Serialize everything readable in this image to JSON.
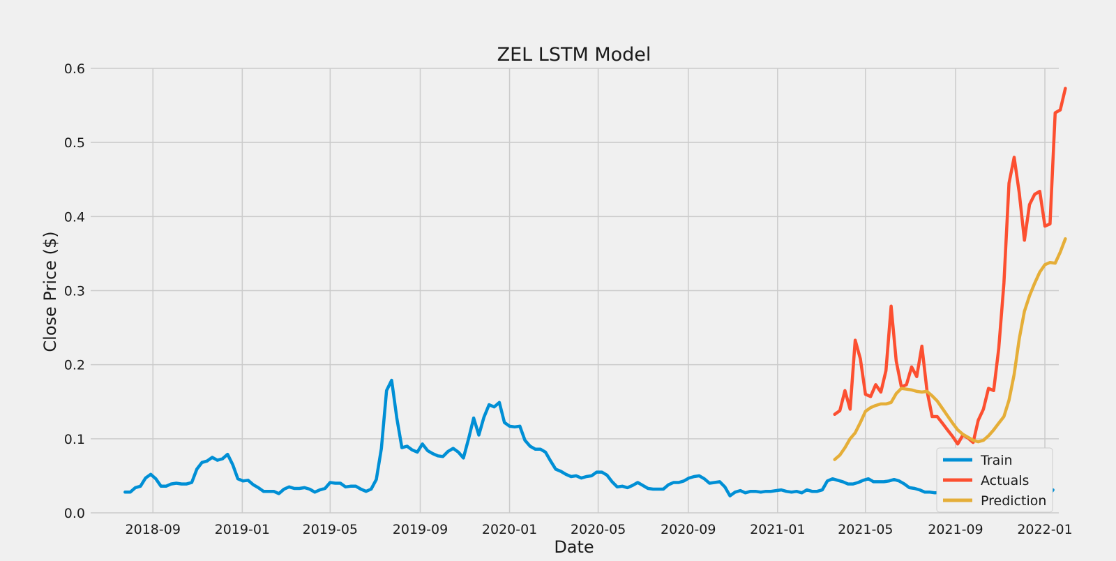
{
  "chart_data": {
    "type": "line",
    "title": "ZEL LSTM Model",
    "xlabel": "Date",
    "ylabel": "Close Price ($)",
    "xlim": [
      "2018-06-08",
      "2022-01-20"
    ],
    "ylim": [
      0,
      0.6
    ],
    "x_ticks": [
      "2018-09",
      "2019-01",
      "2019-05",
      "2019-09",
      "2020-01",
      "2020-05",
      "2020-09",
      "2021-01",
      "2021-05",
      "2021-09",
      "2022-01"
    ],
    "y_ticks": [
      "0.0",
      "0.1",
      "0.2",
      "0.3",
      "0.4",
      "0.5",
      "0.6"
    ],
    "grid": true,
    "legend_position": "bottom-right",
    "series": [
      {
        "name": "Train",
        "color": "#008fd5",
        "points": [
          [
            "2018-07-25",
            0.028
          ],
          [
            "2018-08-01",
            0.028
          ],
          [
            "2018-08-08",
            0.034
          ],
          [
            "2018-08-15",
            0.036
          ],
          [
            "2018-08-22",
            0.047
          ],
          [
            "2018-08-29",
            0.052
          ],
          [
            "2018-09-05",
            0.046
          ],
          [
            "2018-09-12",
            0.036
          ],
          [
            "2018-09-19",
            0.036
          ],
          [
            "2018-09-26",
            0.039
          ],
          [
            "2018-10-03",
            0.04
          ],
          [
            "2018-10-10",
            0.039
          ],
          [
            "2018-10-17",
            0.039
          ],
          [
            "2018-10-24",
            0.041
          ],
          [
            "2018-10-31",
            0.059
          ],
          [
            "2018-11-07",
            0.068
          ],
          [
            "2018-11-14",
            0.07
          ],
          [
            "2018-11-21",
            0.075
          ],
          [
            "2018-11-28",
            0.071
          ],
          [
            "2018-12-05",
            0.073
          ],
          [
            "2018-12-12",
            0.079
          ],
          [
            "2018-12-19",
            0.065
          ],
          [
            "2018-12-26",
            0.046
          ],
          [
            "2019-01-02",
            0.043
          ],
          [
            "2019-01-09",
            0.044
          ],
          [
            "2019-01-16",
            0.038
          ],
          [
            "2019-01-23",
            0.034
          ],
          [
            "2019-01-30",
            0.029
          ],
          [
            "2019-02-06",
            0.029
          ],
          [
            "2019-02-13",
            0.029
          ],
          [
            "2019-02-20",
            0.026
          ],
          [
            "2019-02-27",
            0.032
          ],
          [
            "2019-03-06",
            0.035
          ],
          [
            "2019-03-13",
            0.033
          ],
          [
            "2019-03-20",
            0.033
          ],
          [
            "2019-03-27",
            0.034
          ],
          [
            "2019-04-03",
            0.032
          ],
          [
            "2019-04-10",
            0.028
          ],
          [
            "2019-04-17",
            0.031
          ],
          [
            "2019-04-24",
            0.033
          ],
          [
            "2019-05-01",
            0.041
          ],
          [
            "2019-05-08",
            0.04
          ],
          [
            "2019-05-15",
            0.04
          ],
          [
            "2019-05-22",
            0.035
          ],
          [
            "2019-05-29",
            0.036
          ],
          [
            "2019-06-05",
            0.036
          ],
          [
            "2019-06-12",
            0.032
          ],
          [
            "2019-06-19",
            0.029
          ],
          [
            "2019-06-26",
            0.032
          ],
          [
            "2019-07-03",
            0.045
          ],
          [
            "2019-07-10",
            0.087
          ],
          [
            "2019-07-17",
            0.165
          ],
          [
            "2019-07-24",
            0.179
          ],
          [
            "2019-07-31",
            0.128
          ],
          [
            "2019-08-07",
            0.088
          ],
          [
            "2019-08-14",
            0.09
          ],
          [
            "2019-08-21",
            0.085
          ],
          [
            "2019-08-28",
            0.082
          ],
          [
            "2019-09-04",
            0.093
          ],
          [
            "2019-09-11",
            0.084
          ],
          [
            "2019-09-18",
            0.08
          ],
          [
            "2019-09-25",
            0.077
          ],
          [
            "2019-10-02",
            0.076
          ],
          [
            "2019-10-09",
            0.083
          ],
          [
            "2019-10-16",
            0.087
          ],
          [
            "2019-10-23",
            0.082
          ],
          [
            "2019-10-30",
            0.074
          ],
          [
            "2019-11-06",
            0.1
          ],
          [
            "2019-11-13",
            0.128
          ],
          [
            "2019-11-20",
            0.105
          ],
          [
            "2019-11-27",
            0.129
          ],
          [
            "2019-12-04",
            0.146
          ],
          [
            "2019-12-11",
            0.143
          ],
          [
            "2019-12-18",
            0.149
          ],
          [
            "2019-12-25",
            0.122
          ],
          [
            "2020-01-01",
            0.117
          ],
          [
            "2020-01-08",
            0.116
          ],
          [
            "2020-01-15",
            0.117
          ],
          [
            "2020-01-22",
            0.098
          ],
          [
            "2020-01-29",
            0.09
          ],
          [
            "2020-02-05",
            0.086
          ],
          [
            "2020-02-12",
            0.086
          ],
          [
            "2020-02-19",
            0.082
          ],
          [
            "2020-02-26",
            0.07
          ],
          [
            "2020-03-04",
            0.059
          ],
          [
            "2020-03-11",
            0.056
          ],
          [
            "2020-03-18",
            0.052
          ],
          [
            "2020-03-25",
            0.049
          ],
          [
            "2020-04-01",
            0.05
          ],
          [
            "2020-04-08",
            0.047
          ],
          [
            "2020-04-15",
            0.049
          ],
          [
            "2020-04-22",
            0.05
          ],
          [
            "2020-04-29",
            0.055
          ],
          [
            "2020-05-06",
            0.055
          ],
          [
            "2020-05-13",
            0.051
          ],
          [
            "2020-05-20",
            0.042
          ],
          [
            "2020-05-27",
            0.035
          ],
          [
            "2020-06-03",
            0.036
          ],
          [
            "2020-06-10",
            0.034
          ],
          [
            "2020-06-17",
            0.037
          ],
          [
            "2020-06-24",
            0.041
          ],
          [
            "2020-07-01",
            0.037
          ],
          [
            "2020-07-08",
            0.033
          ],
          [
            "2020-07-15",
            0.032
          ],
          [
            "2020-07-22",
            0.032
          ],
          [
            "2020-07-29",
            0.032
          ],
          [
            "2020-08-05",
            0.038
          ],
          [
            "2020-08-12",
            0.041
          ],
          [
            "2020-08-19",
            0.041
          ],
          [
            "2020-08-26",
            0.043
          ],
          [
            "2020-09-02",
            0.047
          ],
          [
            "2020-09-09",
            0.049
          ],
          [
            "2020-09-16",
            0.05
          ],
          [
            "2020-09-23",
            0.046
          ],
          [
            "2020-09-30",
            0.04
          ],
          [
            "2020-10-07",
            0.041
          ],
          [
            "2020-10-14",
            0.042
          ],
          [
            "2020-10-21",
            0.035
          ],
          [
            "2020-10-28",
            0.023
          ],
          [
            "2020-11-04",
            0.028
          ],
          [
            "2020-11-11",
            0.03
          ],
          [
            "2020-11-18",
            0.027
          ],
          [
            "2020-11-25",
            0.029
          ],
          [
            "2020-12-02",
            0.029
          ],
          [
            "2020-12-09",
            0.028
          ],
          [
            "2020-12-16",
            0.029
          ],
          [
            "2020-12-23",
            0.029
          ],
          [
            "2020-12-30",
            0.03
          ],
          [
            "2021-01-06",
            0.031
          ],
          [
            "2021-01-13",
            0.029
          ],
          [
            "2021-01-20",
            0.028
          ],
          [
            "2021-01-27",
            0.029
          ],
          [
            "2021-02-03",
            0.027
          ],
          [
            "2021-02-10",
            0.031
          ],
          [
            "2021-02-17",
            0.029
          ],
          [
            "2021-02-24",
            0.029
          ],
          [
            "2021-03-03",
            0.031
          ],
          [
            "2021-03-10",
            0.043
          ],
          [
            "2021-03-17",
            0.046
          ],
          [
            "2021-03-24",
            0.044
          ],
          [
            "2021-03-31",
            0.042
          ],
          [
            "2021-04-07",
            0.039
          ],
          [
            "2021-04-14",
            0.039
          ],
          [
            "2021-04-21",
            0.041
          ],
          [
            "2021-04-28",
            0.044
          ],
          [
            "2021-05-05",
            0.046
          ],
          [
            "2021-05-12",
            0.042
          ],
          [
            "2021-05-19",
            0.042
          ],
          [
            "2021-05-26",
            0.042
          ],
          [
            "2021-06-02",
            0.043
          ],
          [
            "2021-06-09",
            0.045
          ],
          [
            "2021-06-16",
            0.043
          ],
          [
            "2021-06-23",
            0.039
          ],
          [
            "2021-06-30",
            0.034
          ],
          [
            "2021-07-07",
            0.033
          ],
          [
            "2021-07-14",
            0.031
          ],
          [
            "2021-07-21",
            0.028
          ],
          [
            "2021-07-28",
            0.028
          ],
          [
            "2021-08-04",
            0.027
          ],
          [
            "2021-08-11",
            0.028
          ],
          [
            "2021-08-18",
            0.029
          ],
          [
            "2021-08-25",
            0.028
          ],
          [
            "2021-09-01",
            0.027
          ],
          [
            "2021-09-08",
            0.026
          ],
          [
            "2021-09-15",
            0.024
          ],
          [
            "2021-09-22",
            0.022
          ],
          [
            "2021-09-29",
            0.02
          ],
          [
            "2021-10-06",
            0.019
          ],
          [
            "2021-10-13",
            0.022
          ],
          [
            "2021-10-20",
            0.025
          ],
          [
            "2021-10-27",
            0.026
          ],
          [
            "2021-11-03",
            0.024
          ],
          [
            "2021-11-10",
            0.024
          ],
          [
            "2021-11-17",
            0.023
          ],
          [
            "2021-11-24",
            0.025
          ],
          [
            "2021-12-01",
            0.021
          ],
          [
            "2021-12-08",
            0.02
          ],
          [
            "2021-12-15",
            0.021
          ],
          [
            "2021-12-22",
            0.022
          ],
          [
            "2021-12-29",
            0.02
          ],
          [
            "2022-01-05",
            0.022
          ],
          [
            "2022-01-12",
            0.031
          ]
        ]
      },
      {
        "name": "Actuals",
        "color": "#fc4f30",
        "points": [
          [
            "2021-03-20",
            0.133
          ],
          [
            "2021-03-27",
            0.138
          ],
          [
            "2021-04-03",
            0.165
          ],
          [
            "2021-04-10",
            0.14
          ],
          [
            "2021-04-17",
            0.233
          ],
          [
            "2021-04-24",
            0.208
          ],
          [
            "2021-05-01",
            0.16
          ],
          [
            "2021-05-08",
            0.157
          ],
          [
            "2021-05-15",
            0.173
          ],
          [
            "2021-05-22",
            0.163
          ],
          [
            "2021-05-29",
            0.192
          ],
          [
            "2021-06-05",
            0.279
          ],
          [
            "2021-06-12",
            0.205
          ],
          [
            "2021-06-19",
            0.17
          ],
          [
            "2021-06-26",
            0.173
          ],
          [
            "2021-07-03",
            0.197
          ],
          [
            "2021-07-10",
            0.184
          ],
          [
            "2021-07-17",
            0.225
          ],
          [
            "2021-07-24",
            0.165
          ],
          [
            "2021-07-31",
            0.13
          ],
          [
            "2021-08-07",
            0.13
          ],
          [
            "2021-08-14",
            0.121
          ],
          [
            "2021-08-21",
            0.112
          ],
          [
            "2021-08-28",
            0.103
          ],
          [
            "2021-09-04",
            0.093
          ],
          [
            "2021-09-11",
            0.105
          ],
          [
            "2021-09-18",
            0.101
          ],
          [
            "2021-09-25",
            0.095
          ],
          [
            "2021-10-02",
            0.125
          ],
          [
            "2021-10-09",
            0.14
          ],
          [
            "2021-10-16",
            0.168
          ],
          [
            "2021-10-23",
            0.165
          ],
          [
            "2021-10-30",
            0.222
          ],
          [
            "2021-11-06",
            0.31
          ],
          [
            "2021-11-13",
            0.445
          ],
          [
            "2021-11-20",
            0.48
          ],
          [
            "2021-11-27",
            0.432
          ],
          [
            "2021-12-04",
            0.368
          ],
          [
            "2021-12-11",
            0.416
          ],
          [
            "2021-12-18",
            0.43
          ],
          [
            "2021-12-25",
            0.434
          ],
          [
            "2022-01-01",
            0.387
          ],
          [
            "2022-01-08",
            0.39
          ],
          [
            "2022-01-15",
            0.54
          ],
          [
            "2022-01-22",
            0.544
          ],
          [
            "2022-01-29",
            0.573
          ]
        ]
      },
      {
        "name": "Prediction",
        "color": "#e5ae38",
        "points": [
          [
            "2021-03-20",
            0.072
          ],
          [
            "2021-03-27",
            0.078
          ],
          [
            "2021-04-03",
            0.088
          ],
          [
            "2021-04-10",
            0.1
          ],
          [
            "2021-04-17",
            0.108
          ],
          [
            "2021-04-24",
            0.122
          ],
          [
            "2021-05-01",
            0.137
          ],
          [
            "2021-05-08",
            0.142
          ],
          [
            "2021-05-15",
            0.145
          ],
          [
            "2021-05-22",
            0.147
          ],
          [
            "2021-05-29",
            0.147
          ],
          [
            "2021-06-05",
            0.149
          ],
          [
            "2021-06-12",
            0.161
          ],
          [
            "2021-06-19",
            0.168
          ],
          [
            "2021-06-26",
            0.167
          ],
          [
            "2021-07-03",
            0.166
          ],
          [
            "2021-07-10",
            0.164
          ],
          [
            "2021-07-17",
            0.163
          ],
          [
            "2021-07-24",
            0.164
          ],
          [
            "2021-07-31",
            0.158
          ],
          [
            "2021-08-07",
            0.151
          ],
          [
            "2021-08-14",
            0.141
          ],
          [
            "2021-08-21",
            0.131
          ],
          [
            "2021-08-28",
            0.121
          ],
          [
            "2021-09-04",
            0.112
          ],
          [
            "2021-09-11",
            0.106
          ],
          [
            "2021-09-18",
            0.102
          ],
          [
            "2021-09-25",
            0.098
          ],
          [
            "2021-10-02",
            0.096
          ],
          [
            "2021-10-09",
            0.098
          ],
          [
            "2021-10-16",
            0.104
          ],
          [
            "2021-10-23",
            0.112
          ],
          [
            "2021-10-30",
            0.121
          ],
          [
            "2021-11-06",
            0.13
          ],
          [
            "2021-11-13",
            0.152
          ],
          [
            "2021-11-20",
            0.187
          ],
          [
            "2021-11-27",
            0.235
          ],
          [
            "2021-12-04",
            0.272
          ],
          [
            "2021-12-11",
            0.293
          ],
          [
            "2021-12-18",
            0.31
          ],
          [
            "2021-12-25",
            0.325
          ],
          [
            "2022-01-01",
            0.335
          ],
          [
            "2022-01-08",
            0.338
          ],
          [
            "2022-01-15",
            0.337
          ],
          [
            "2022-01-22",
            0.352
          ],
          [
            "2022-01-29",
            0.37
          ]
        ]
      }
    ]
  }
}
